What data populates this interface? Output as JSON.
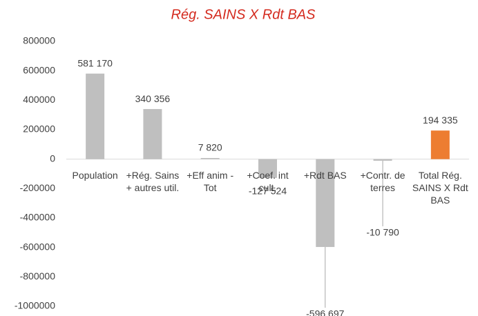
{
  "chart_data": {
    "type": "bar",
    "title": "Rég. SAINS X Rdt BAS",
    "categories": [
      "Population",
      "+Rég. Sains + autres util.",
      "+Eff anim - Tot",
      "+Coef. int cult.",
      "+Rdt BAS",
      "+Contr. de terres",
      "Total Rég. SAINS X Rdt BAS"
    ],
    "values": [
      581170,
      340356,
      7820,
      -127524,
      -596697,
      -10790,
      194335
    ],
    "value_labels": [
      "581 170",
      "340 356",
      "7 820",
      "-127 524",
      "-596 697",
      "-10 790",
      "194 335"
    ],
    "colors": [
      "#bfbfbf",
      "#bfbfbf",
      "#bfbfbf",
      "#bfbfbf",
      "#bfbfbf",
      "#bfbfbf",
      "#ed7d31"
    ],
    "ylim": [
      -1000000,
      800000
    ],
    "yticks": [
      -1000000,
      -800000,
      -600000,
      -400000,
      -200000,
      0,
      200000,
      400000,
      600000,
      800000
    ],
    "grid": false
  }
}
